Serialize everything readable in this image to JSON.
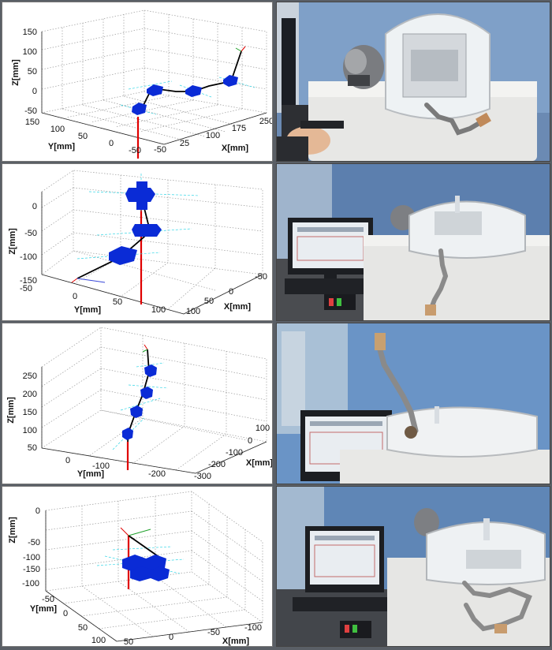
{
  "panels": [
    {
      "z_label": "Z[mm]",
      "y_label": "Y[mm]",
      "x_label": "X[mm]",
      "z_ticks": [
        "150",
        "100",
        "50",
        "0",
        "-50"
      ],
      "y_ticks": [
        "150",
        "100",
        "50",
        "0",
        "-50"
      ],
      "x_ticks": [
        "-50",
        "25",
        "100",
        "175",
        "250"
      ]
    },
    {
      "z_label": "Z[mm]",
      "y_label": "Y[mm]",
      "x_label": "X[mm]",
      "z_ticks": [
        "0",
        "-50",
        "-100",
        "-150"
      ],
      "y_ticks": [
        "-50",
        "0",
        "50",
        "100"
      ],
      "x_ticks": [
        "-50",
        "0",
        "50",
        "100"
      ]
    },
    {
      "z_label": "Z[mm]",
      "y_label": "Y[mm]",
      "x_label": "X[mm]",
      "z_ticks": [
        "250",
        "200",
        "150",
        "100",
        "50"
      ],
      "y_ticks": [
        "0",
        "-100",
        "-200"
      ],
      "x_ticks": [
        "100",
        "0",
        "-100",
        "-200",
        "-300"
      ]
    },
    {
      "z_label": "Z[mm]",
      "y_label": "Y[mm]",
      "x_label": "X[mm]",
      "z_ticks": [
        "0",
        "-50",
        "-100",
        "-150"
      ],
      "y_ticks": [
        "-100",
        "-50",
        "0",
        "50",
        "100"
      ],
      "x_ticks": [
        "50",
        "0",
        "-50",
        "-100"
      ]
    }
  ],
  "colors": {
    "segment": "#0a2bd6",
    "backbone": "#000000",
    "base_axis": "#e00000",
    "frame_cyan": "#33d6e6",
    "grid": "#9a9a9a"
  }
}
